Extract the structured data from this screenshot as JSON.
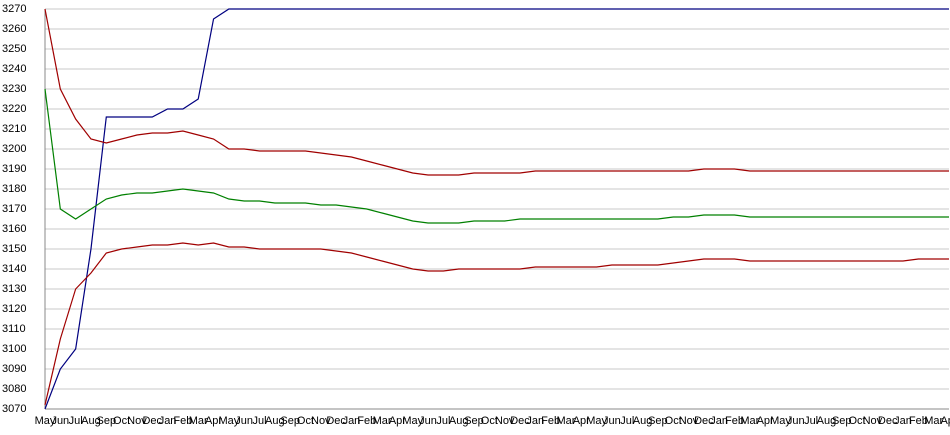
{
  "chart_data": {
    "type": "line",
    "categories": [
      "May",
      "Jun",
      "Jul",
      "Aug",
      "Sep",
      "Oct",
      "Nov",
      "Dec",
      "Jan",
      "Feb",
      "Mar",
      "Apr",
      "May",
      "Jun",
      "Jul",
      "Aug",
      "Sep",
      "Oct",
      "Nov",
      "Dec",
      "Jan",
      "Feb",
      "Mar",
      "Apr",
      "May",
      "Jun",
      "Jul",
      "Aug",
      "Sep",
      "Oct",
      "Nov",
      "Dec",
      "Jan",
      "Feb",
      "Mar",
      "Apr",
      "May",
      "Jun",
      "Jul",
      "Aug",
      "Sep",
      "Oct",
      "Nov",
      "Dec",
      "Jan",
      "Feb",
      "Mar",
      "Apr",
      "May",
      "Jun",
      "Jul",
      "Aug",
      "Sep",
      "Oct",
      "Nov",
      "Dec",
      "Jan",
      "Feb",
      "Mar",
      "Apr"
    ],
    "series": [
      {
        "color": "#000080",
        "values": [
          3070,
          3090,
          3100,
          3150,
          3216,
          3216,
          3216,
          3216,
          3220,
          3220,
          3225,
          3265,
          3270,
          3270,
          3270,
          3270,
          3270,
          3270,
          3270,
          3270,
          3270,
          3270,
          3270,
          3270,
          3270,
          3270,
          3270,
          3270,
          3270,
          3270,
          3270,
          3270,
          3270,
          3270,
          3270,
          3270,
          3270,
          3270,
          3270,
          3270,
          3270,
          3270,
          3270,
          3270,
          3270,
          3270,
          3270,
          3270,
          3270,
          3270,
          3270,
          3270,
          3270,
          3270,
          3270,
          3270,
          3270,
          3270,
          3270,
          3270
        ]
      },
      {
        "color": "#a00000",
        "values": [
          3270,
          3230,
          3215,
          3205,
          3203,
          3205,
          3207,
          3208,
          3208,
          3209,
          3207,
          3205,
          3200,
          3200,
          3199,
          3199,
          3199,
          3199,
          3198,
          3197,
          3196,
          3194,
          3192,
          3190,
          3188,
          3187,
          3187,
          3187,
          3188,
          3188,
          3188,
          3188,
          3189,
          3189,
          3189,
          3189,
          3189,
          3189,
          3189,
          3189,
          3189,
          3189,
          3189,
          3190,
          3190,
          3190,
          3189,
          3189,
          3189,
          3189,
          3189,
          3189,
          3189,
          3189,
          3189,
          3189,
          3189,
          3189,
          3189,
          3189
        ]
      },
      {
        "color": "#008000",
        "values": [
          3230,
          3170,
          3165,
          3170,
          3175,
          3177,
          3178,
          3178,
          3179,
          3180,
          3179,
          3178,
          3175,
          3174,
          3174,
          3173,
          3173,
          3173,
          3172,
          3172,
          3171,
          3170,
          3168,
          3166,
          3164,
          3163,
          3163,
          3163,
          3164,
          3164,
          3164,
          3165,
          3165,
          3165,
          3165,
          3165,
          3165,
          3165,
          3165,
          3165,
          3165,
          3166,
          3166,
          3167,
          3167,
          3167,
          3166,
          3166,
          3166,
          3166,
          3166,
          3166,
          3166,
          3166,
          3166,
          3166,
          3166,
          3166,
          3166,
          3166
        ]
      },
      {
        "color": "#a00000",
        "values": [
          3072,
          3105,
          3130,
          3138,
          3148,
          3150,
          3151,
          3152,
          3152,
          3153,
          3152,
          3153,
          3151,
          3151,
          3150,
          3150,
          3150,
          3150,
          3150,
          3149,
          3148,
          3146,
          3144,
          3142,
          3140,
          3139,
          3139,
          3140,
          3140,
          3140,
          3140,
          3140,
          3141,
          3141,
          3141,
          3141,
          3141,
          3142,
          3142,
          3142,
          3142,
          3143,
          3144,
          3145,
          3145,
          3145,
          3144,
          3144,
          3144,
          3144,
          3144,
          3144,
          3144,
          3144,
          3144,
          3144,
          3144,
          3145,
          3145,
          3145
        ]
      }
    ],
    "ylim": [
      3070,
      3270
    ],
    "yticks": [
      3070,
      3080,
      3090,
      3100,
      3110,
      3120,
      3130,
      3140,
      3150,
      3160,
      3170,
      3180,
      3190,
      3200,
      3210,
      3220,
      3230,
      3240,
      3250,
      3260,
      3270
    ],
    "grid": true
  }
}
